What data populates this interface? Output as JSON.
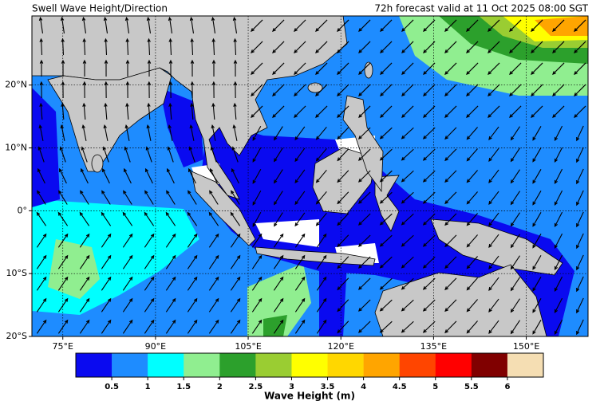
{
  "chart_data": {
    "type": "map",
    "title": "Swell Wave Height/Direction",
    "subtitle": "72h forecast valid at 11 Oct 2025 08:00 SGT",
    "xlim": [
      70,
      160
    ],
    "ylim": [
      -20,
      31
    ],
    "xticks": [
      {
        "value": 75,
        "label": "75°E"
      },
      {
        "value": 90,
        "label": "90°E"
      },
      {
        "value": 105,
        "label": "105°E"
      },
      {
        "value": 120,
        "label": "120°E"
      },
      {
        "value": 135,
        "label": "135°E"
      },
      {
        "value": 150,
        "label": "150°E"
      }
    ],
    "yticks": [
      {
        "value": 20,
        "label": "20°N"
      },
      {
        "value": 10,
        "label": "10°N"
      },
      {
        "value": 0,
        "label": "0°"
      },
      {
        "value": -10,
        "label": "10°S"
      },
      {
        "value": -20,
        "label": "20°S"
      }
    ],
    "grid": true,
    "colorbar": {
      "label": "Wave Height (m)",
      "ticks": [
        0.5,
        1,
        1.5,
        2,
        2.5,
        3,
        3.5,
        4,
        4.5,
        5,
        5.5,
        6
      ],
      "colors": [
        "#0a0af0",
        "#1e8cff",
        "#00ffff",
        "#90ee90",
        "#2ca02c",
        "#9acd32",
        "#ffff00",
        "#ffd700",
        "#ffa500",
        "#ff4500",
        "#ff0000",
        "#800000",
        "#f5deb3"
      ]
    }
  }
}
